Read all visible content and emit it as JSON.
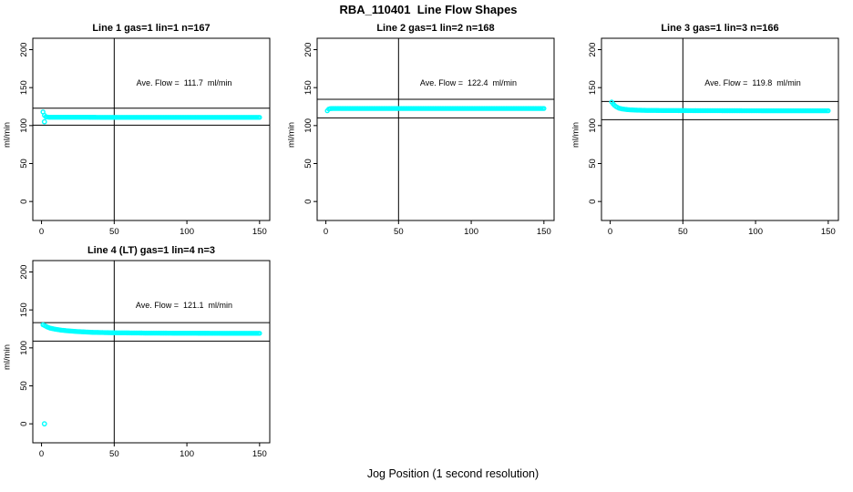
{
  "title": "RBA_110401  Line Flow Shapes",
  "xlabel": "Jog Position (1 second resolution)",
  "colors": {
    "marker": "#00FFFF",
    "axis": "#000000",
    "background": "#FFFFFF"
  },
  "chart_data": [
    {
      "type": "scatter",
      "title": "Line 1 gas=1 lin=1 n=167",
      "ylabel": "ml/min",
      "annotation": "Ave. Flow =  111.7  ml/min",
      "ave_flow": 111.7,
      "n": 167,
      "xlim": [
        -6,
        157
      ],
      "ylim": [
        -25,
        215
      ],
      "xticks": [
        0,
        50,
        100,
        150
      ],
      "yticks": [
        0,
        50,
        100,
        150,
        200
      ],
      "vline_x": 50,
      "hlines": [
        122.9,
        100.5
      ],
      "marker_color": "#00FFFF",
      "x_range": [
        1,
        150
      ],
      "points_profile": [
        [
          1,
          118
        ],
        [
          2,
          113.5
        ],
        [
          3,
          111.5
        ],
        [
          5,
          111
        ],
        [
          10,
          111
        ],
        [
          20,
          111
        ],
        [
          50,
          110.8
        ],
        [
          100,
          110.8
        ],
        [
          150,
          110.8
        ]
      ],
      "extra_points": [
        [
          2,
          105
        ]
      ]
    },
    {
      "type": "scatter",
      "title": "Line 2 gas=1 lin=2 n=168",
      "ylabel": "ml/min",
      "annotation": "Ave. Flow =  122.4  ml/min",
      "ave_flow": 122.4,
      "n": 168,
      "xlim": [
        -6,
        157
      ],
      "ylim": [
        -25,
        215
      ],
      "xticks": [
        0,
        50,
        100,
        150
      ],
      "yticks": [
        0,
        50,
        100,
        150,
        200
      ],
      "vline_x": 50,
      "hlines": [
        134.6,
        110.2
      ],
      "marker_color": "#00FFFF",
      "x_range": [
        1,
        150
      ],
      "points_profile": [
        [
          1,
          119.5
        ],
        [
          2,
          121.8
        ],
        [
          3,
          122.4
        ],
        [
          5,
          122.5
        ],
        [
          50,
          122.5
        ],
        [
          100,
          122.5
        ],
        [
          150,
          122.5
        ]
      ],
      "extra_points": []
    },
    {
      "type": "scatter",
      "title": "Line 3 gas=1 lin=3 n=166",
      "ylabel": "ml/min",
      "annotation": "Ave. Flow =  119.8  ml/min",
      "ave_flow": 119.8,
      "n": 166,
      "xlim": [
        -6,
        157
      ],
      "ylim": [
        -25,
        215
      ],
      "xticks": [
        0,
        50,
        100,
        150
      ],
      "yticks": [
        0,
        50,
        100,
        150,
        200
      ],
      "vline_x": 50,
      "hlines": [
        131.8,
        107.8
      ],
      "marker_color": "#00FFFF",
      "x_range": [
        1,
        150
      ],
      "points_profile": [
        [
          1,
          131
        ],
        [
          2,
          128.5
        ],
        [
          3,
          126.5
        ],
        [
          4,
          125
        ],
        [
          6,
          123
        ],
        [
          8,
          122
        ],
        [
          12,
          121
        ],
        [
          17,
          120.4
        ],
        [
          25,
          120
        ],
        [
          40,
          119.8
        ],
        [
          80,
          119.6
        ],
        [
          150,
          119.5
        ]
      ],
      "extra_points": []
    },
    {
      "type": "scatter",
      "title": "Line 4 (LT) gas=1 lin=4 n=3",
      "ylabel": "ml/min",
      "annotation": "Ave. Flow =  121.1  ml/min",
      "ave_flow": 121.1,
      "n": 3,
      "xlim": [
        -6,
        157
      ],
      "ylim": [
        -25,
        215
      ],
      "xticks": [
        0,
        50,
        100,
        150
      ],
      "yticks": [
        0,
        50,
        100,
        150,
        200
      ],
      "vline_x": 50,
      "hlines": [
        133.2,
        109.0
      ],
      "marker_color": "#00FFFF",
      "x_range": [
        1,
        150
      ],
      "points_profile": [
        [
          1,
          130.5
        ],
        [
          2,
          129.5
        ],
        [
          4,
          127.5
        ],
        [
          6,
          126
        ],
        [
          9,
          124.8
        ],
        [
          13,
          123.5
        ],
        [
          18,
          122.5
        ],
        [
          25,
          121.5
        ],
        [
          35,
          120.5
        ],
        [
          50,
          119.9
        ],
        [
          75,
          119.5
        ],
        [
          110,
          119.3
        ],
        [
          150,
          119.2
        ]
      ],
      "extra_points": [
        [
          2,
          0
        ]
      ]
    }
  ]
}
